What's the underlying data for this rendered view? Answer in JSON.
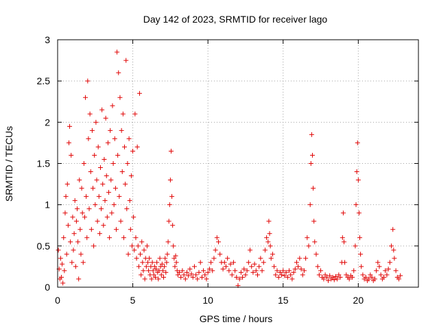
{
  "chart_data": {
    "type": "scatter",
    "title": "Day 142 of 2023, SRMTID for receiver lago",
    "xlabel": "GPS time / hours",
    "ylabel": "SRMTID / TECUs",
    "xlim": [
      0,
      24
    ],
    "ylim": [
      0,
      3
    ],
    "xticks": [
      0,
      5,
      10,
      15,
      20
    ],
    "xtick_labels": [
      "0",
      "5",
      "10",
      "15",
      "20"
    ],
    "yticks": [
      0,
      0.5,
      1,
      1.5,
      2,
      2.5,
      3
    ],
    "ytick_labels": [
      "0",
      "0.5",
      "1",
      "1.5",
      "2",
      "2.5",
      "3"
    ],
    "grid": true,
    "marker": "+",
    "color": "#e00000",
    "series": [
      {
        "name": "SRMTID",
        "points": [
          [
            0.05,
            0.45
          ],
          [
            0.1,
            0.22
          ],
          [
            0.15,
            0.1
          ],
          [
            0.2,
            0.35
          ],
          [
            0.25,
            0.12
          ],
          [
            0.3,
            0.28
          ],
          [
            0.35,
            0.05
          ],
          [
            0.4,
            0.6
          ],
          [
            0.45,
            0.2
          ],
          [
            0.5,
            0.9
          ],
          [
            0.55,
            1.1
          ],
          [
            0.6,
            0.4
          ],
          [
            0.65,
            1.25
          ],
          [
            0.7,
            0.75
          ],
          [
            0.75,
            1.75
          ],
          [
            0.8,
            1.95
          ],
          [
            0.85,
            0.55
          ],
          [
            0.9,
            1.6
          ],
          [
            0.95,
            0.3
          ],
          [
            1.0,
            0.85
          ],
          [
            1.05,
            0.45
          ],
          [
            1.1,
            0.65
          ],
          [
            1.15,
            1.05
          ],
          [
            1.2,
            0.25
          ],
          [
            1.25,
            0.8
          ],
          [
            1.3,
            0.95
          ],
          [
            1.35,
            0.55
          ],
          [
            1.4,
            0.1
          ],
          [
            1.45,
            1.3
          ],
          [
            1.5,
            0.7
          ],
          [
            1.55,
            0.4
          ],
          [
            1.6,
            1.2
          ],
          [
            1.65,
            0.9
          ],
          [
            1.7,
            0.3
          ],
          [
            1.75,
            1.5
          ],
          [
            1.8,
            0.85
          ],
          [
            1.85,
            2.3
          ],
          [
            1.9,
            1.1
          ],
          [
            1.95,
            0.6
          ],
          [
            2.0,
            2.5
          ],
          [
            2.05,
            1.8
          ],
          [
            2.1,
            0.95
          ],
          [
            2.15,
            2.1
          ],
          [
            2.2,
            1.4
          ],
          [
            2.25,
            0.7
          ],
          [
            2.3,
            1.9
          ],
          [
            2.35,
            1.2
          ],
          [
            2.4,
            0.5
          ],
          [
            2.45,
            1.6
          ],
          [
            2.5,
            1.0
          ],
          [
            2.55,
            2.0
          ],
          [
            2.6,
            1.3
          ],
          [
            2.65,
            0.8
          ],
          [
            2.7,
            1.7
          ],
          [
            2.75,
            1.1
          ],
          [
            2.8,
            0.65
          ],
          [
            2.85,
            1.45
          ],
          [
            2.9,
            0.95
          ],
          [
            2.95,
            2.15
          ],
          [
            3.0,
            1.25
          ],
          [
            3.05,
            0.75
          ],
          [
            3.1,
            1.55
          ],
          [
            3.15,
            1.05
          ],
          [
            3.2,
            2.05
          ],
          [
            3.25,
            1.35
          ],
          [
            3.3,
            0.85
          ],
          [
            3.35,
            1.75
          ],
          [
            3.4,
            1.15
          ],
          [
            3.45,
            0.6
          ],
          [
            3.5,
            1.9
          ],
          [
            3.55,
            1.3
          ],
          [
            3.6,
            0.9
          ],
          [
            3.65,
            2.2
          ],
          [
            3.7,
            1.5
          ],
          [
            3.75,
            1.0
          ],
          [
            3.8,
            1.8
          ],
          [
            3.85,
            1.2
          ],
          [
            3.9,
            0.7
          ],
          [
            3.95,
            2.85
          ],
          [
            4.0,
            1.6
          ],
          [
            4.05,
            2.6
          ],
          [
            4.1,
            1.1
          ],
          [
            4.15,
            2.3
          ],
          [
            4.2,
            0.8
          ],
          [
            4.25,
            1.9
          ],
          [
            4.3,
            1.4
          ],
          [
            4.35,
            2.1
          ],
          [
            4.4,
            0.6
          ],
          [
            4.45,
            1.7
          ],
          [
            4.5,
            1.25
          ],
          [
            4.55,
            2.75
          ],
          [
            4.6,
            0.95
          ],
          [
            4.65,
            1.5
          ],
          [
            4.7,
            0.4
          ],
          [
            4.75,
            1.8
          ],
          [
            4.8,
            1.05
          ],
          [
            4.85,
            0.7
          ],
          [
            4.9,
            1.35
          ],
          [
            4.95,
            0.5
          ],
          [
            5.0,
            1.65
          ],
          [
            5.05,
            0.85
          ],
          [
            5.1,
            0.45
          ],
          [
            5.15,
            2.1
          ],
          [
            5.2,
            0.6
          ],
          [
            5.25,
            0.35
          ],
          [
            5.3,
            1.7
          ],
          [
            5.35,
            0.5
          ],
          [
            5.4,
            0.25
          ],
          [
            5.45,
            2.35
          ],
          [
            5.5,
            0.4
          ],
          [
            5.55,
            0.15
          ],
          [
            5.6,
            0.55
          ],
          [
            5.65,
            0.3
          ],
          [
            5.7,
            0.2
          ],
          [
            5.75,
            0.45
          ],
          [
            5.8,
            0.1
          ],
          [
            5.85,
            0.35
          ],
          [
            5.9,
            0.25
          ],
          [
            5.95,
            0.5
          ],
          [
            6.0,
            0.3
          ],
          [
            6.05,
            0.2
          ],
          [
            6.1,
            0.35
          ],
          [
            6.15,
            0.15
          ],
          [
            6.2,
            0.25
          ],
          [
            6.25,
            0.1
          ],
          [
            6.3,
            0.3
          ],
          [
            6.35,
            0.2
          ],
          [
            6.4,
            0.15
          ],
          [
            6.45,
            0.25
          ],
          [
            6.5,
            0.12
          ],
          [
            6.55,
            0.22
          ],
          [
            6.6,
            0.3
          ],
          [
            6.65,
            0.18
          ],
          [
            6.7,
            0.1
          ],
          [
            6.75,
            0.2
          ],
          [
            6.8,
            0.35
          ],
          [
            6.85,
            0.25
          ],
          [
            6.9,
            0.15
          ],
          [
            6.95,
            0.28
          ],
          [
            7.0,
            0.2
          ],
          [
            7.05,
            0.12
          ],
          [
            7.1,
            0.25
          ],
          [
            7.15,
            0.35
          ],
          [
            7.2,
            0.18
          ],
          [
            7.25,
            0.3
          ],
          [
            7.3,
            0.4
          ],
          [
            7.35,
            0.55
          ],
          [
            7.4,
            0.8
          ],
          [
            7.45,
            1.0
          ],
          [
            7.5,
            1.3
          ],
          [
            7.55,
            1.65
          ],
          [
            7.6,
            1.1
          ],
          [
            7.65,
            0.75
          ],
          [
            7.7,
            0.5
          ],
          [
            7.75,
            0.35
          ],
          [
            7.8,
            0.25
          ],
          [
            7.85,
            0.38
          ],
          [
            7.9,
            0.3
          ],
          [
            7.95,
            0.2
          ],
          [
            8.0,
            0.15
          ],
          [
            8.1,
            0.18
          ],
          [
            8.2,
            0.12
          ],
          [
            8.3,
            0.2
          ],
          [
            8.4,
            0.15
          ],
          [
            8.5,
            0.1
          ],
          [
            8.6,
            0.18
          ],
          [
            8.7,
            0.14
          ],
          [
            8.8,
            0.22
          ],
          [
            8.9,
            0.16
          ],
          [
            9.0,
            0.12
          ],
          [
            9.1,
            0.25
          ],
          [
            9.2,
            0.15
          ],
          [
            9.3,
            0.1
          ],
          [
            9.4,
            0.18
          ],
          [
            9.5,
            0.3
          ],
          [
            9.6,
            0.12
          ],
          [
            9.7,
            0.2
          ],
          [
            9.8,
            0.15
          ],
          [
            9.9,
            0.1
          ],
          [
            10.0,
            0.18
          ],
          [
            10.1,
            0.22
          ],
          [
            10.2,
            0.3
          ],
          [
            10.3,
            0.2
          ],
          [
            10.4,
            0.35
          ],
          [
            10.5,
            0.45
          ],
          [
            10.6,
            0.6
          ],
          [
            10.7,
            0.55
          ],
          [
            10.8,
            0.4
          ],
          [
            10.9,
            0.3
          ],
          [
            11.0,
            0.22
          ],
          [
            11.1,
            0.3
          ],
          [
            11.2,
            0.25
          ],
          [
            11.3,
            0.35
          ],
          [
            11.4,
            0.2
          ],
          [
            11.5,
            0.28
          ],
          [
            11.6,
            0.15
          ],
          [
            11.7,
            0.3
          ],
          [
            11.8,
            0.2
          ],
          [
            11.9,
            0.12
          ],
          [
            12.0,
            0.02
          ],
          [
            12.1,
            0.1
          ],
          [
            12.2,
            0.18
          ],
          [
            12.3,
            0.12
          ],
          [
            12.4,
            0.22
          ],
          [
            12.5,
            0.15
          ],
          [
            12.6,
            0.2
          ],
          [
            12.7,
            0.3
          ],
          [
            12.8,
            0.45
          ],
          [
            12.9,
            0.25
          ],
          [
            13.0,
            0.18
          ],
          [
            13.1,
            0.28
          ],
          [
            13.2,
            0.2
          ],
          [
            13.3,
            0.15
          ],
          [
            13.4,
            0.25
          ],
          [
            13.5,
            0.35
          ],
          [
            13.6,
            0.2
          ],
          [
            13.7,
            0.3
          ],
          [
            13.8,
            0.45
          ],
          [
            13.9,
            0.6
          ],
          [
            14.0,
            0.55
          ],
          [
            14.05,
            0.8
          ],
          [
            14.1,
            0.65
          ],
          [
            14.15,
            0.5
          ],
          [
            14.2,
            0.35
          ],
          [
            14.3,
            0.4
          ],
          [
            14.4,
            0.25
          ],
          [
            14.5,
            0.15
          ],
          [
            14.6,
            0.2
          ],
          [
            14.7,
            0.12
          ],
          [
            14.8,
            0.18
          ],
          [
            14.9,
            0.15
          ],
          [
            15.0,
            0.2
          ],
          [
            15.1,
            0.14
          ],
          [
            15.2,
            0.18
          ],
          [
            15.3,
            0.12
          ],
          [
            15.4,
            0.2
          ],
          [
            15.5,
            0.15
          ],
          [
            15.6,
            0.1
          ],
          [
            15.7,
            0.18
          ],
          [
            15.8,
            0.22
          ],
          [
            15.9,
            0.3
          ],
          [
            16.0,
            0.25
          ],
          [
            16.1,
            0.35
          ],
          [
            16.2,
            0.22
          ],
          [
            16.3,
            0.15
          ],
          [
            16.4,
            0.2
          ],
          [
            16.5,
            0.35
          ],
          [
            16.6,
            0.6
          ],
          [
            16.7,
            0.5
          ],
          [
            16.8,
            1.0
          ],
          [
            16.85,
            1.5
          ],
          [
            16.9,
            1.85
          ],
          [
            16.95,
            1.6
          ],
          [
            17.0,
            1.2
          ],
          [
            17.05,
            0.8
          ],
          [
            17.1,
            0.55
          ],
          [
            17.2,
            0.4
          ],
          [
            17.3,
            0.25
          ],
          [
            17.4,
            0.15
          ],
          [
            17.5,
            0.2
          ],
          [
            17.6,
            0.12
          ],
          [
            17.7,
            0.1
          ],
          [
            17.8,
            0.15
          ],
          [
            17.9,
            0.12
          ],
          [
            18.0,
            0.08
          ],
          [
            18.1,
            0.14
          ],
          [
            18.2,
            0.1
          ],
          [
            18.3,
            0.12
          ],
          [
            18.4,
            0.09
          ],
          [
            18.5,
            0.13
          ],
          [
            18.6,
            0.1
          ],
          [
            18.7,
            0.15
          ],
          [
            18.8,
            0.12
          ],
          [
            18.9,
            0.3
          ],
          [
            18.95,
            0.6
          ],
          [
            19.0,
            0.9
          ],
          [
            19.05,
            0.55
          ],
          [
            19.1,
            0.3
          ],
          [
            19.2,
            0.15
          ],
          [
            19.3,
            0.12
          ],
          [
            19.4,
            0.1
          ],
          [
            19.5,
            0.14
          ],
          [
            19.6,
            0.12
          ],
          [
            19.7,
            0.2
          ],
          [
            19.8,
            0.5
          ],
          [
            19.85,
            1.0
          ],
          [
            19.9,
            1.4
          ],
          [
            19.95,
            1.75
          ],
          [
            20.0,
            1.3
          ],
          [
            20.05,
            0.9
          ],
          [
            20.1,
            0.6
          ],
          [
            20.15,
            0.4
          ],
          [
            20.2,
            0.25
          ],
          [
            20.3,
            0.15
          ],
          [
            20.4,
            0.1
          ],
          [
            20.5,
            0.12
          ],
          [
            20.6,
            0.08
          ],
          [
            20.7,
            0.1
          ],
          [
            20.8,
            0.15
          ],
          [
            20.9,
            0.12
          ],
          [
            21.0,
            0.08
          ],
          [
            21.1,
            0.1
          ],
          [
            21.2,
            0.2
          ],
          [
            21.3,
            0.3
          ],
          [
            21.4,
            0.25
          ],
          [
            21.5,
            0.15
          ],
          [
            21.6,
            0.1
          ],
          [
            21.7,
            0.12
          ],
          [
            21.8,
            0.2
          ],
          [
            21.9,
            0.15
          ],
          [
            22.0,
            0.22
          ],
          [
            22.1,
            0.3
          ],
          [
            22.2,
            0.5
          ],
          [
            22.3,
            0.7
          ],
          [
            22.35,
            0.45
          ],
          [
            22.4,
            0.35
          ],
          [
            22.5,
            0.2
          ],
          [
            22.6,
            0.12
          ],
          [
            22.7,
            0.1
          ],
          [
            22.8,
            0.14
          ]
        ]
      }
    ]
  }
}
